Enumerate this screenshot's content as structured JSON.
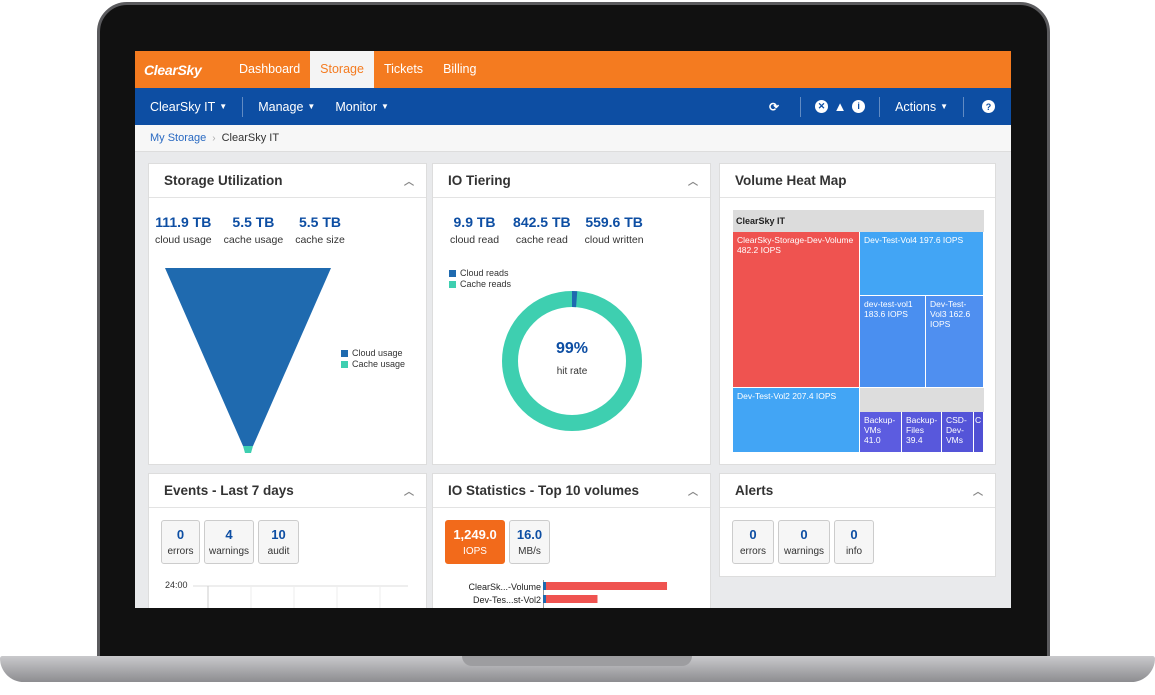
{
  "brand": {
    "logo": "ClearSky"
  },
  "topnav": {
    "tabs": [
      {
        "label": "Dashboard",
        "active": false
      },
      {
        "label": "Storage",
        "active": true
      },
      {
        "label": "Tickets",
        "active": false
      },
      {
        "label": "Billing",
        "active": false
      }
    ]
  },
  "subnav": {
    "account": "ClearSky IT",
    "manage": "Manage",
    "monitor": "Monitor",
    "actions": "Actions"
  },
  "breadcrumb": {
    "root": "My Storage",
    "current": "ClearSky IT"
  },
  "storage_utilization": {
    "title": "Storage Utilization",
    "stats": [
      {
        "value": "111.9 TB",
        "label": "cloud usage"
      },
      {
        "value": "5.5 TB",
        "label": "cache usage"
      },
      {
        "value": "5.5 TB",
        "label": "cache size"
      }
    ],
    "legend": [
      "Cloud usage",
      "Cache usage"
    ]
  },
  "io_tiering": {
    "title": "IO Tiering",
    "stats": [
      {
        "value": "9.9 TB",
        "label": "cloud read"
      },
      {
        "value": "842.5 TB",
        "label": "cache read"
      },
      {
        "value": "559.6 TB",
        "label": "cloud written"
      }
    ],
    "legend": [
      "Cloud reads",
      "Cache reads"
    ],
    "hit_rate_value": "99%",
    "hit_rate_label": "hit rate"
  },
  "heat_map": {
    "title": "Volume Heat Map",
    "header": "ClearSky IT",
    "cells": [
      {
        "label": "ClearSky-Storage-Dev-Volume 482.2 IOPS"
      },
      {
        "label": "Dev-Test-Vol4 197.6 IOPS"
      },
      {
        "label": "dev-test-vol1 183.6 IOPS"
      },
      {
        "label": "Dev-Test-Vol3 162.6 IOPS"
      },
      {
        "label": "Dev-Test-Vol2 207.4 IOPS"
      },
      {
        "label": "Backup-VMs 41.0"
      },
      {
        "label": "Backup-Files 39.4"
      },
      {
        "label": "CSD-Dev-VMs"
      },
      {
        "label": "C"
      }
    ]
  },
  "events": {
    "title": "Events - Last 7 days",
    "counts": [
      {
        "value": "0",
        "label": "errors"
      },
      {
        "value": "4",
        "label": "warnings"
      },
      {
        "value": "10",
        "label": "audit"
      }
    ],
    "y_tick": "24:00"
  },
  "io_statistics": {
    "title": "IO Statistics - Top 10 volumes",
    "counts": [
      {
        "value": "1,249.0",
        "label": "IOPS"
      },
      {
        "value": "16.0",
        "label": "MB/s"
      }
    ],
    "bars": [
      {
        "label": "ClearSk...-Volume"
      },
      {
        "label": "Dev-Tes...st-Vol2"
      }
    ]
  },
  "alerts": {
    "title": "Alerts",
    "counts": [
      {
        "value": "0",
        "label": "errors"
      },
      {
        "value": "0",
        "label": "warnings"
      },
      {
        "value": "0",
        "label": "info"
      }
    ]
  },
  "colors": {
    "orange": "#f47b20",
    "navy": "#0d4ea3",
    "teal": "#3ecfb0",
    "cloud_blue": "#1f6aaf",
    "heat_red": "#ef5350",
    "heat_blue": "#42a5f5",
    "heat_purple": "#5c5ce0"
  },
  "chart_data": [
    {
      "type": "funnel",
      "series": [
        {
          "name": "Cloud usage",
          "value_tb": 111.9
        },
        {
          "name": "Cache usage",
          "value_tb": 5.5
        }
      ]
    },
    {
      "type": "pie",
      "series": [
        {
          "name": "Cloud reads",
          "value_tb": 9.9
        },
        {
          "name": "Cache reads",
          "value_tb": 842.5
        }
      ]
    },
    {
      "type": "heatmap",
      "values_iops": [
        482.2,
        197.6,
        183.6,
        162.6,
        207.4,
        41.0,
        39.4
      ]
    },
    {
      "type": "bar",
      "categories": [
        "ClearSk...-Volume",
        "Dev-Tes...st-Vol2"
      ],
      "values": [
        482.2,
        207.4
      ]
    }
  ]
}
